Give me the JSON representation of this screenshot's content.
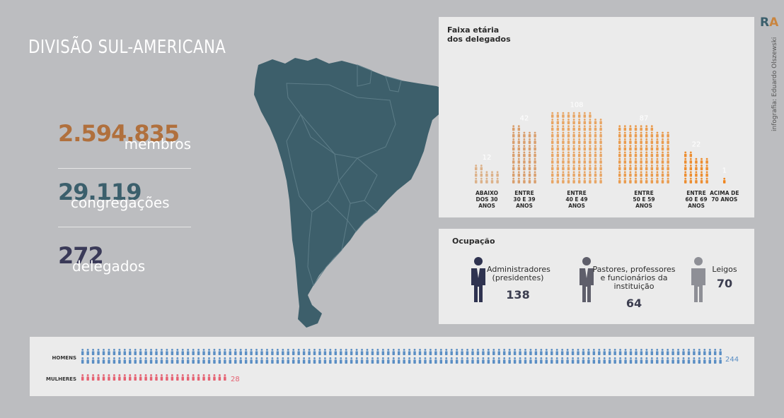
{
  "header": {
    "title": "DIVISÃO SUL-AMERICANA"
  },
  "stats": [
    {
      "value": "2.594.835",
      "label": "membros",
      "color": "#b0703d"
    },
    {
      "value": "29.119",
      "label": "congregações",
      "color": "#3b5f6c"
    },
    {
      "value": "272",
      "label": "delegados",
      "color": "#3a3a58"
    }
  ],
  "chart_data": [
    {
      "type": "bar",
      "title": "Faixa etária\ndos delegados",
      "categories": [
        "ABAIXO\nDOS 30\nANOS",
        "ENTRE\n30 E 39\nANOS",
        "ENTRE\n40 E 49\nANOS",
        "ENTRE\n50 E 59\nANOS",
        "ENTRE\n60 E 69\nANOS",
        "ACIMA DE\n70 ANOS"
      ],
      "values": [
        12,
        42,
        108,
        87,
        22,
        1
      ],
      "colors": [
        "#dcb189",
        "#d99e6c",
        "#e8a564",
        "#ea9b4d",
        "#ed8d2f",
        "#f0841c"
      ]
    },
    {
      "type": "bar",
      "title": "Ocupação",
      "categories": [
        "Administradores\n(presidentes)",
        "Pastores, professores\ne funcionários da\ninstituição",
        "Leigos"
      ],
      "values": [
        138,
        64,
        70
      ],
      "colors": [
        "#2f3350",
        "#5f5f6b",
        "#8e8f96"
      ]
    },
    {
      "type": "bar",
      "categories": [
        "HOMENS",
        "MULHERES"
      ],
      "values": [
        244,
        28
      ],
      "colors": [
        "#5a8ec4",
        "#e56272"
      ]
    }
  ],
  "logo": {
    "left": "R",
    "right": "A"
  },
  "credit": "infografia: Eduardo Olszewski",
  "palette": {
    "background": "#bcbdc0",
    "panel": "#ebebeb",
    "map": "#3d5f6b"
  }
}
